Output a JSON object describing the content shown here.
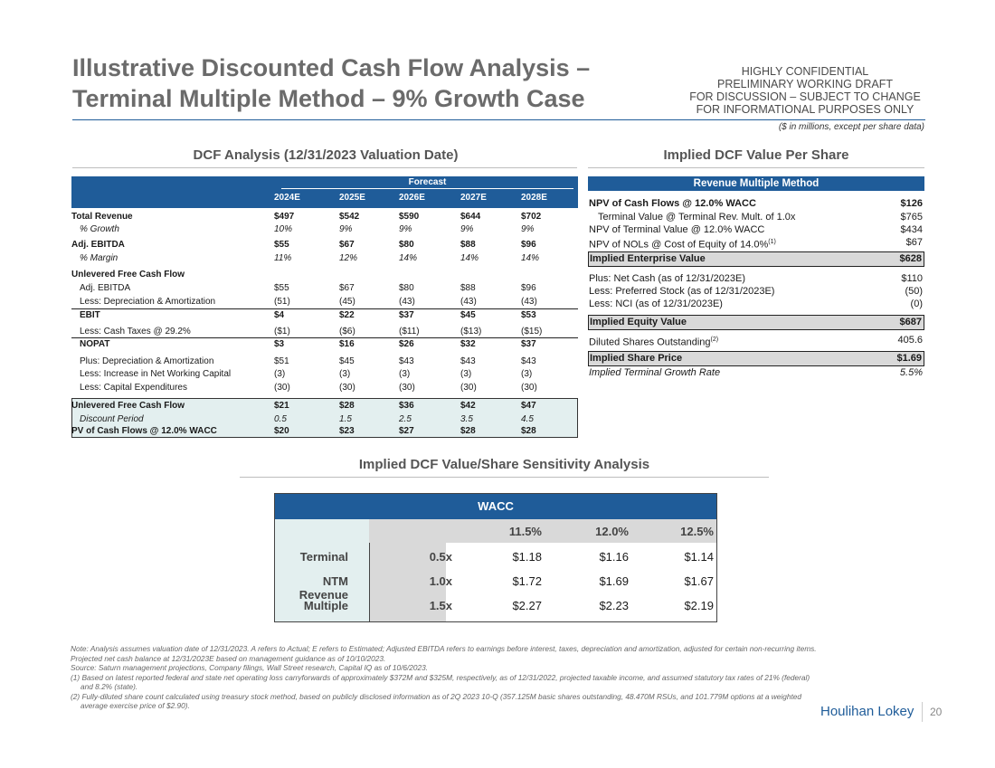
{
  "title": {
    "line1": "Illustrative Discounted Cash Flow Analysis –",
    "line2": "Terminal Multiple Method – 9% Growth Case"
  },
  "confidential": [
    "HIGHLY CONFIDENTIAL",
    "PRELIMINARY WORKING DRAFT",
    "FOR DISCUSSION – SUBJECT TO CHANGE",
    "FOR INFORMATIONAL PURPOSES ONLY"
  ],
  "units": "($ in millions, except per share data)",
  "dcf": {
    "section_title": "DCF Analysis (12/31/2023 Valuation Date)",
    "forecast_label": "Forecast",
    "years": [
      "2024E",
      "2025E",
      "2026E",
      "2027E",
      "2028E"
    ],
    "rows": [
      {
        "label": "Total Revenue",
        "values": [
          "$497",
          "$542",
          "$590",
          "$644",
          "$702"
        ]
      },
      {
        "label": "% Growth",
        "values": [
          "10%",
          "9%",
          "9%",
          "9%",
          "9%"
        ]
      },
      {
        "label": "Adj. EBITDA",
        "values": [
          "$55",
          "$67",
          "$80",
          "$88",
          "$96"
        ]
      },
      {
        "label": "% Margin",
        "values": [
          "11%",
          "12%",
          "14%",
          "14%",
          "14%"
        ]
      },
      {
        "label": "Unlevered Free Cash Flow",
        "values": []
      },
      {
        "label": "Adj. EBITDA",
        "values": [
          "$55",
          "$67",
          "$80",
          "$88",
          "$96"
        ]
      },
      {
        "label": "Less: Depreciation & Amortization",
        "values": [
          "(51)",
          "(45)",
          "(43)",
          "(43)",
          "(43)"
        ]
      },
      {
        "label": "EBIT",
        "values": [
          "$4",
          "$22",
          "$37",
          "$45",
          "$53"
        ]
      },
      {
        "label": "Less: Cash Taxes @ 29.2%",
        "values": [
          "($1)",
          "($6)",
          "($11)",
          "($13)",
          "($15)"
        ]
      },
      {
        "label": "NOPAT",
        "values": [
          "$3",
          "$16",
          "$26",
          "$32",
          "$37"
        ]
      },
      {
        "label": "Plus: Depreciation & Amortization",
        "values": [
          "$51",
          "$45",
          "$43",
          "$43",
          "$43"
        ]
      },
      {
        "label": "Less: Increase in Net Working Capital",
        "values": [
          "(3)",
          "(3)",
          "(3)",
          "(3)",
          "(3)"
        ]
      },
      {
        "label": "Less: Capital Expenditures",
        "values": [
          "(30)",
          "(30)",
          "(30)",
          "(30)",
          "(30)"
        ]
      },
      {
        "label": "Unlevered Free Cash Flow",
        "values": [
          "$21",
          "$28",
          "$36",
          "$42",
          "$47"
        ]
      },
      {
        "label": "Discount Period",
        "values": [
          "0.5",
          "1.5",
          "2.5",
          "3.5",
          "4.5"
        ]
      },
      {
        "label": "PV of Cash Flows @ 12.0% WACC",
        "values": [
          "$20",
          "$23",
          "$27",
          "$28",
          "$28"
        ]
      }
    ]
  },
  "implied": {
    "section_title": "Implied DCF Value Per Share",
    "header": "Revenue Multiple Method",
    "rows": [
      {
        "label": "NPV of Cash Flows @ 12.0% WACC",
        "value": "$126"
      },
      {
        "label": "Terminal Value @ Terminal Rev. Mult. of 1.0x",
        "value": "$765"
      },
      {
        "label": "NPV of Terminal Value @ 12.0% WACC",
        "value": "$434"
      },
      {
        "label": "NPV of NOLs @ Cost of Equity of 14.0%",
        "sup": "(1)",
        "value": "$67"
      },
      {
        "label": "Implied Enterprise Value",
        "value": "$628"
      },
      {
        "label": "Plus: Net Cash (as of 12/31/2023E)",
        "value": "$110"
      },
      {
        "label": "Less: Preferred Stock (as of 12/31/2023E)",
        "value": "(50)"
      },
      {
        "label": "Less: NCI (as of 12/31/2023E)",
        "value": "(0)"
      },
      {
        "label": "Implied Equity Value",
        "value": "$687"
      },
      {
        "label": "Diluted Shares Outstanding",
        "sup": "(2)",
        "value": "405.6"
      },
      {
        "label": "Implied Share Price",
        "value": "$1.69"
      },
      {
        "label": "Implied Terminal Growth Rate",
        "value": "5.5%"
      }
    ]
  },
  "sensitivity": {
    "section_title": "Implied DCF Value/Share Sensitivity Analysis",
    "wacc_label": "WACC",
    "wacc_values": [
      "11.5%",
      "12.0%",
      "12.5%"
    ],
    "row_labels": [
      "Terminal",
      "NTM Revenue",
      "Multiple"
    ],
    "multiples": [
      "0.5x",
      "1.0x",
      "1.5x"
    ],
    "grid": [
      [
        "$1.18",
        "$1.16",
        "$1.14"
      ],
      [
        "$1.72",
        "$1.69",
        "$1.67"
      ],
      [
        "$2.27",
        "$2.23",
        "$2.19"
      ]
    ]
  },
  "notes": {
    "main": "Note: Analysis assumes valuation date of 12/31/2023. A refers to Actual; E refers to Estimated; Adjusted EBITDA refers to earnings before interest, taxes, depreciation and amortization, adjusted for certain non-recurring items. Projected net cash balance at 12/31/2023E based on management guidance as of 10/10/2023.",
    "source": "Source: Saturn management projections, Company filings, Wall Street research, Capital IQ as of 10/6/2023.",
    "fn1": "(1)  Based on latest reported federal and state net operating loss carryforwards of approximately $372M and $325M, respectively, as of 12/31/2022, projected taxable income, and assumed statutory tax rates of 21% (federal) and 8.2% (state).",
    "fn2": "(2)  Fully-diluted share count calculated using treasury stock method, based on publicly disclosed information as of 2Q 2023 10-Q (357.125M basic shares outstanding, 48.470M RSUs, and 101.779M options at a weighted average exercise price of $2.90)."
  },
  "footer": {
    "brand": "Houlihan Lokey",
    "page": "20"
  }
}
